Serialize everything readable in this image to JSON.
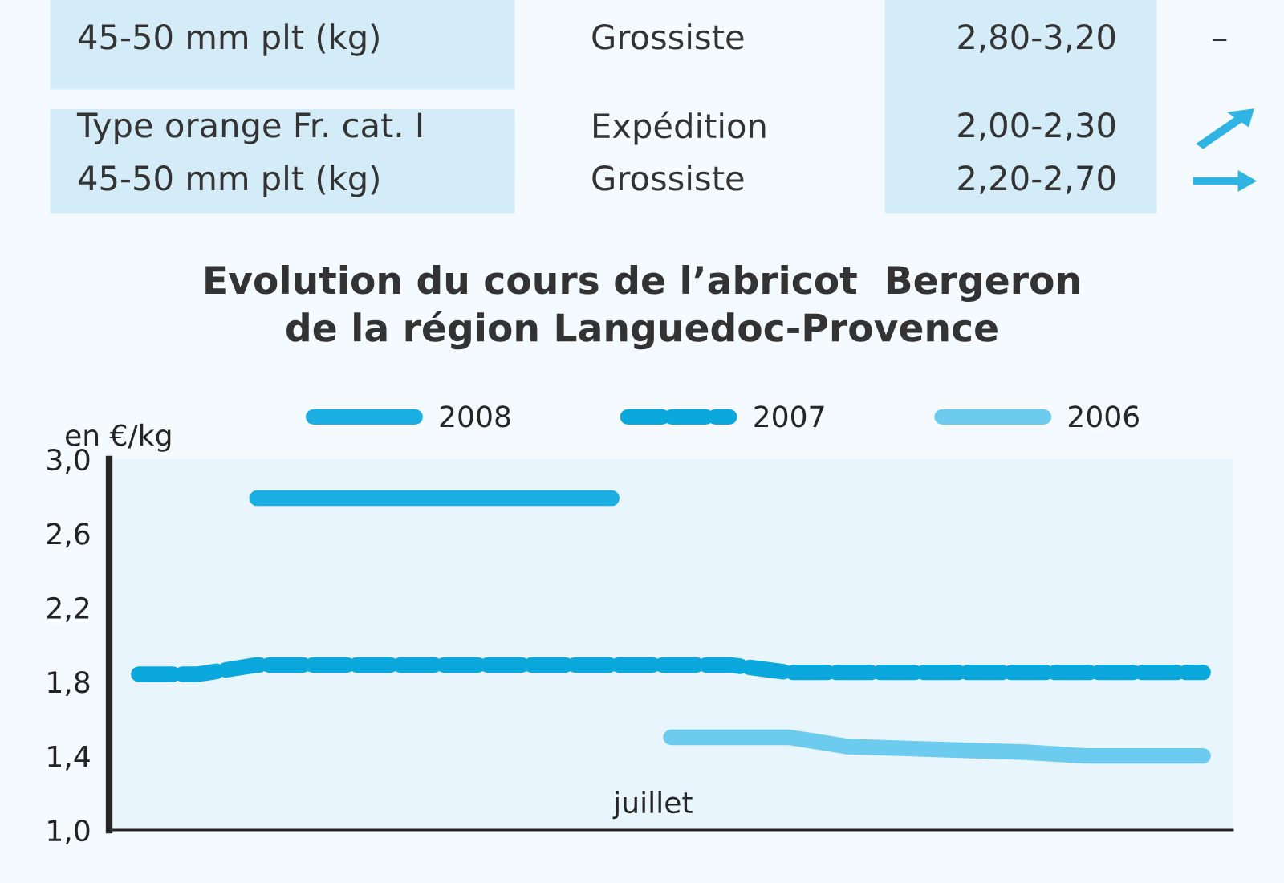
{
  "chart_data": {
    "type": "line",
    "title": "Evolution du cours de l’abricot  Bergeron\nde la région Languedoc-Provence",
    "ylabel": "en €/kg",
    "categories": [
      null,
      null,
      null,
      null,
      null,
      null,
      null,
      null,
      null,
      null,
      null,
      null,
      null,
      null,
      null,
      null,
      null,
      null,
      null
    ],
    "series": [
      {
        "name": "2008",
        "color": "#1aaee2",
        "line_style": "solid",
        "values": [
          null,
          null,
          2.79,
          2.79,
          2.79,
          2.79,
          2.79,
          2.79,
          2.79,
          null,
          null,
          null,
          null,
          null,
          null,
          null,
          null,
          null,
          null
        ]
      },
      {
        "name": "2007",
        "color": "#0aa8dc",
        "line_style": "dashed",
        "values": [
          1.84,
          1.84,
          1.89,
          1.89,
          1.89,
          1.89,
          1.89,
          1.89,
          1.89,
          1.89,
          1.89,
          1.85,
          1.85,
          1.85,
          1.85,
          1.85,
          1.85,
          1.85,
          1.85
        ]
      },
      {
        "name": "2006",
        "color": "#6ccbef",
        "line_style": "solid",
        "values": [
          null,
          null,
          null,
          null,
          null,
          null,
          null,
          null,
          null,
          1.5,
          1.5,
          1.5,
          1.45,
          1.44,
          1.43,
          1.42,
          1.4,
          1.4,
          1.4
        ]
      }
    ],
    "ylim": [
      1.0,
      3.0
    ],
    "yticks": [
      {
        "value": 1.0,
        "label": "1,0"
      },
      {
        "value": 1.4,
        "label": "1,4"
      },
      {
        "value": 1.8,
        "label": "1,8"
      },
      {
        "value": 2.2,
        "label": "2,2"
      },
      {
        "value": 2.6,
        "label": "2,6"
      },
      {
        "value": 3.0,
        "label": "3,0"
      }
    ],
    "grid": false,
    "legend": "top",
    "marker": "none",
    "annotations": [
      "45-50 mm plt (kg)",
      "Grossiste",
      "2,80-3,20",
      "–",
      "Type orange Fr. cat. I",
      "Expédition",
      "2,00-2,30",
      "45-50 mm plt (kg)",
      "Grossiste",
      "2,20-2,70",
      "juillet"
    ]
  }
}
